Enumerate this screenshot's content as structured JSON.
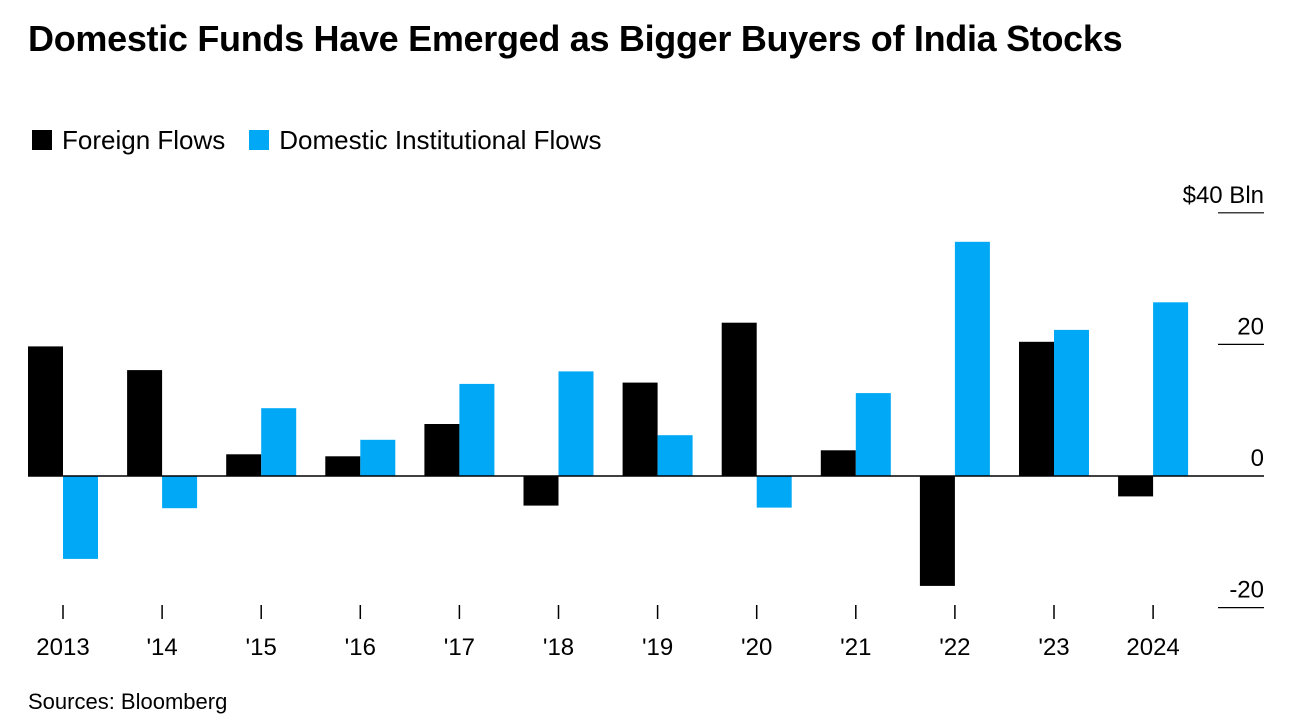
{
  "title": "Domestic Funds Have Emerged as Bigger Buyers of India Stocks",
  "source": "Sources: Bloomberg",
  "legend": {
    "foreign": "Foreign Flows",
    "domestic": "Domestic Institutional Flows"
  },
  "colors": {
    "foreign": "#000000",
    "domestic": "#00a8f5"
  },
  "chart_data": {
    "type": "bar",
    "categories": [
      "2013",
      "'14",
      "'15",
      "'16",
      "'17",
      "'18",
      "'19",
      "'20",
      "'21",
      "'22",
      "'23",
      "2024"
    ],
    "series": [
      {
        "name": "Foreign Flows",
        "values": [
          19.7,
          16.1,
          3.3,
          3.0,
          7.9,
          -4.5,
          14.2,
          23.3,
          3.9,
          -16.7,
          20.4,
          -3.1
        ]
      },
      {
        "name": "Domestic Institutional Flows",
        "values": [
          -12.6,
          -4.9,
          10.3,
          5.5,
          14.0,
          15.9,
          6.2,
          -4.8,
          12.6,
          35.6,
          22.2,
          26.4
        ]
      }
    ],
    "y_ticks": [
      {
        "value": 40,
        "label": "$40 Bln"
      },
      {
        "value": 20,
        "label": "20"
      },
      {
        "value": 0,
        "label": "0"
      },
      {
        "value": -20,
        "label": "-20"
      }
    ],
    "ylim": [
      -20,
      40
    ],
    "xlabel": "",
    "ylabel": "",
    "y_axis_side": "right",
    "grid": false,
    "legend_position": "top-left"
  }
}
